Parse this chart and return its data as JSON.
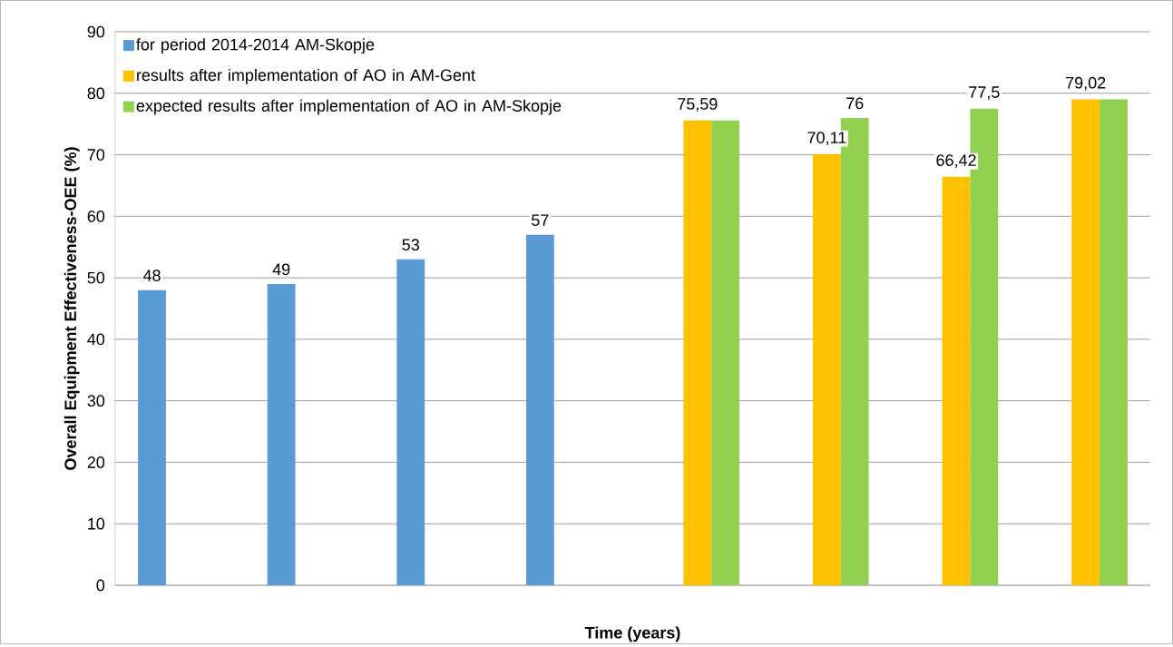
{
  "chart_data": {
    "type": "bar",
    "xlabel": "Time (years)",
    "ylabel": "Overall Equipment Effectiveness-OEE (%)",
    "categories": [
      null,
      null,
      null,
      null,
      null,
      null,
      null,
      null
    ],
    "series": [
      {
        "name": "for period 2014-2014 AM-Skopje",
        "color": "#5b9bd5",
        "values": [
          48,
          49,
          53,
          57,
          null,
          null,
          null,
          null
        ],
        "value_labels": [
          "48",
          "49",
          "53",
          "57",
          null,
          null,
          null,
          null
        ]
      },
      {
        "name": "results after implementation of AO in AM-Gent",
        "color": "#ffc000",
        "values": [
          null,
          null,
          null,
          null,
          75.59,
          70.11,
          66.42,
          79.02
        ],
        "value_labels": [
          null,
          null,
          null,
          null,
          "75,59",
          "70,11",
          "66,42",
          "79,02"
        ]
      },
      {
        "name": "expected results after implementation of AO in AM-Skopje",
        "color": "#92d050",
        "values": [
          null,
          null,
          null,
          null,
          75.59,
          76,
          77.5,
          79.02
        ],
        "value_labels": [
          null,
          null,
          null,
          null,
          null,
          "76",
          "77,5",
          null
        ]
      }
    ],
    "ylim": [
      0,
      90
    ],
    "yticks": [
      0,
      10,
      20,
      30,
      40,
      50,
      60,
      70,
      80,
      90
    ],
    "grid": "y",
    "legend": "top left",
    "tick_labels": "y"
  }
}
